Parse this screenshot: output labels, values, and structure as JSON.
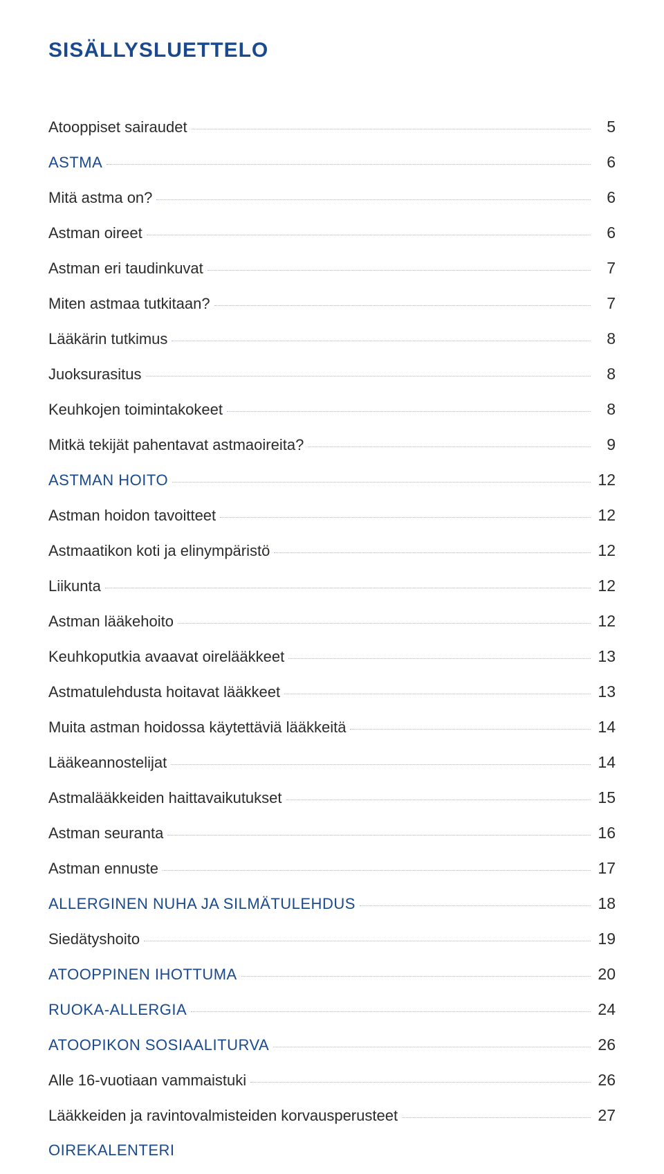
{
  "title": "SISÄLLYSLUETTELO",
  "colors": {
    "heading": "#1a4a8d",
    "text": "#2b2b2b",
    "leader": "#9db8d8",
    "background": "#ffffff"
  },
  "typography": {
    "title_fontsize": 30,
    "row_fontsize": 22,
    "page_fontsize": 23,
    "font_family": "Arial"
  },
  "toc": [
    {
      "label": "Atooppiset sairaudet",
      "page": "5",
      "section": false
    },
    {
      "label": "ASTMA",
      "page": "6",
      "section": true
    },
    {
      "label": "Mitä astma on?",
      "page": "6",
      "section": false
    },
    {
      "label": "Astman oireet",
      "page": "6",
      "section": false
    },
    {
      "label": "Astman eri taudinkuvat",
      "page": "7",
      "section": false
    },
    {
      "label": "Miten astmaa tutkitaan?",
      "page": "7",
      "section": false
    },
    {
      "label": "Lääkärin tutkimus",
      "page": "8",
      "section": false
    },
    {
      "label": "Juoksurasitus",
      "page": "8",
      "section": false
    },
    {
      "label": "Keuhkojen toimintakokeet",
      "page": "8",
      "section": false
    },
    {
      "label": "Mitkä tekijät pahentavat astmaoireita?",
      "page": "9",
      "section": false
    },
    {
      "label": "ASTMAN HOITO",
      "page": "12",
      "section": true
    },
    {
      "label": "Astman hoidon tavoitteet",
      "page": "12",
      "section": false
    },
    {
      "label": "Astmaatikon koti ja elinympäristö",
      "page": "12",
      "section": false
    },
    {
      "label": "Liikunta",
      "page": "12",
      "section": false
    },
    {
      "label": "Astman lääkehoito",
      "page": "12",
      "section": false
    },
    {
      "label": "Keuhkoputkia avaavat oirelääkkeet",
      "page": "13",
      "section": false
    },
    {
      "label": "Astmatulehdusta hoitavat lääkkeet",
      "page": "13",
      "section": false
    },
    {
      "label": "Muita astman hoidossa käytettäviä lääkkeitä",
      "page": "14",
      "section": false
    },
    {
      "label": "Lääkeannostelijat",
      "page": "14",
      "section": false
    },
    {
      "label": "Astmalääkkeiden haittavaikutukset",
      "page": "15",
      "section": false
    },
    {
      "label": "Astman seuranta",
      "page": "16",
      "section": false
    },
    {
      "label": "Astman ennuste",
      "page": "17",
      "section": false
    },
    {
      "label": "ALLERGINEN NUHA JA SILMÄTULEHDUS",
      "page": "18",
      "section": true
    },
    {
      "label": "Siedätyshoito",
      "page": "19",
      "section": false
    },
    {
      "label": "ATOOPPINEN IHOTTUMA",
      "page": "20",
      "section": true
    },
    {
      "label": "RUOKA-ALLERGIA",
      "page": "24",
      "section": true
    },
    {
      "label": "ATOOPIKON SOSIAALITURVA",
      "page": "26",
      "section": true
    },
    {
      "label": "Alle 16-vuotiaan vammaistuki",
      "page": "26",
      "section": false
    },
    {
      "label": "Lääkkeiden ja ravintovalmisteiden korvausperusteet",
      "page": "27",
      "section": false
    },
    {
      "label": "OIREKALENTERI",
      "page": "",
      "section": true,
      "no_page": true
    }
  ]
}
